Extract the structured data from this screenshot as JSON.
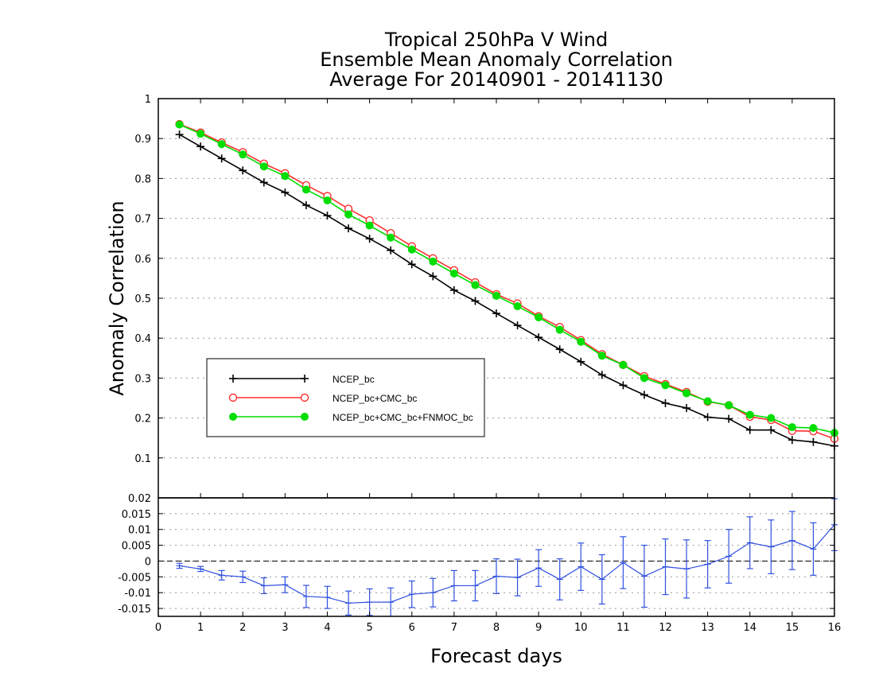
{
  "chart_data": {
    "type": "line",
    "title_lines": [
      "Tropical 250hPa V Wind",
      "Ensemble Mean Anomaly Correlation",
      "Average For 20140901 - 20141130"
    ],
    "xlabel": "Forecast days",
    "ylabel": "Anomaly Correlation",
    "xlim": [
      0,
      16
    ],
    "x_ticks": [
      "0",
      "1",
      "2",
      "3",
      "4",
      "5",
      "6",
      "7",
      "8",
      "9",
      "10",
      "11",
      "12",
      "13",
      "14",
      "15",
      "16"
    ],
    "x": [
      0.5,
      1,
      1.5,
      2,
      2.5,
      3,
      3.5,
      4,
      4.5,
      5,
      5.5,
      6,
      6.5,
      7,
      7.5,
      8,
      8.5,
      9,
      9.5,
      10,
      10.5,
      11,
      11.5,
      12,
      12.5,
      13,
      13.5,
      14,
      14.5,
      15,
      15.5,
      16
    ],
    "main_panel": {
      "ylim": [
        0,
        1
      ],
      "y_ticks": [
        "0.1",
        "0.2",
        "0.3",
        "0.4",
        "0.5",
        "0.6",
        "0.7",
        "0.8",
        "0.9",
        "1"
      ],
      "grid": "horizontal dotted",
      "legend_position": "center-left",
      "series": [
        {
          "name": "NCEP_bc",
          "color": "#000000",
          "marker": "plus",
          "values": [
            0.91,
            0.88,
            0.85,
            0.82,
            0.79,
            0.765,
            0.733,
            0.707,
            0.675,
            0.649,
            0.62,
            0.585,
            0.555,
            0.52,
            0.493,
            0.462,
            0.432,
            0.402,
            0.372,
            0.341,
            0.308,
            0.282,
            0.258,
            0.237,
            0.225,
            0.202,
            0.198,
            0.17,
            0.17,
            0.145,
            0.14,
            0.13
          ]
        },
        {
          "name": "NCEP_bc+CMC_bc",
          "color": "#ff3030",
          "marker": "open-circle",
          "values": [
            0.936,
            0.915,
            0.89,
            0.866,
            0.837,
            0.813,
            0.783,
            0.756,
            0.724,
            0.695,
            0.663,
            0.63,
            0.6,
            0.57,
            0.54,
            0.51,
            0.487,
            0.455,
            0.428,
            0.395,
            0.36,
            0.333,
            0.305,
            0.285,
            0.265,
            0.241,
            0.232,
            0.203,
            0.195,
            0.168,
            0.167,
            0.148
          ]
        },
        {
          "name": "NCEP_bc+CMC_bc+FNMOC_bc",
          "color": "#00dd00",
          "marker": "filled-circle",
          "values": [
            0.935,
            0.912,
            0.886,
            0.86,
            0.83,
            0.806,
            0.772,
            0.745,
            0.71,
            0.682,
            0.652,
            0.622,
            0.592,
            0.562,
            0.533,
            0.506,
            0.48,
            0.452,
            0.421,
            0.391,
            0.356,
            0.333,
            0.3,
            0.282,
            0.262,
            0.242,
            0.232,
            0.208,
            0.2,
            0.177,
            0.175,
            0.163
          ]
        }
      ]
    },
    "difference_panel": {
      "ylim": [
        -0.0175,
        0.02
      ],
      "y_ticks": [
        "-0.015",
        "-0.01",
        "-0.005",
        "0",
        "0.005",
        "0.01",
        "0.015",
        "0.02"
      ],
      "zero_line": "dashed",
      "series": [
        {
          "color": "#3050e0",
          "marker": "error-bar",
          "values": [
            -0.0015,
            -0.0025,
            -0.0045,
            -0.005,
            -0.0078,
            -0.0075,
            -0.0112,
            -0.0115,
            -0.0133,
            -0.013,
            -0.013,
            -0.0105,
            -0.01,
            -0.0078,
            -0.0078,
            -0.0048,
            -0.0052,
            -0.0022,
            -0.0058,
            -0.0018,
            -0.0058,
            -0.0005,
            -0.0048,
            -0.0018,
            -0.0025,
            -0.001,
            0.0015,
            0.0058,
            0.0045,
            0.0065,
            0.0038,
            0.0115
          ],
          "half_error": [
            0.0008,
            0.0008,
            0.0015,
            0.0018,
            0.0025,
            0.0025,
            0.0035,
            0.0035,
            0.0038,
            0.0042,
            0.0045,
            0.0042,
            0.0045,
            0.0048,
            0.0048,
            0.0055,
            0.0058,
            0.0058,
            0.0065,
            0.0075,
            0.0078,
            0.0082,
            0.0098,
            0.0088,
            0.0092,
            0.0075,
            0.0085,
            0.0082,
            0.0085,
            0.0092,
            0.0083,
            0.0082
          ]
        }
      ]
    }
  }
}
